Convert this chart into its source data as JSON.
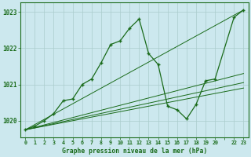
{
  "title": "Graphe pression niveau de la mer (hPa)",
  "bg_color": "#cce8ee",
  "grid_color": "#aacccc",
  "line_color": "#1a6b1a",
  "xlim": [
    -0.5,
    23.5
  ],
  "ylim": [
    1019.55,
    1023.25
  ],
  "yticks": [
    1020,
    1021,
    1022,
    1023
  ],
  "xtick_positions": [
    0,
    1,
    2,
    3,
    4,
    5,
    6,
    7,
    8,
    9,
    10,
    11,
    12,
    13,
    14,
    15,
    16,
    17,
    18,
    19,
    20,
    21,
    22,
    23
  ],
  "xtick_labels": [
    "0",
    "1",
    "2",
    "3",
    "4",
    "5",
    "6",
    "7",
    "8",
    "9",
    "10",
    "11",
    "12",
    "13",
    "14",
    "15",
    "16",
    "17",
    "18",
    "19",
    "20",
    "",
    "22",
    "23"
  ],
  "series": [
    [
      0,
      1019.75
    ],
    [
      1,
      1019.85
    ],
    [
      2,
      1020.0
    ],
    [
      3,
      1020.2
    ],
    [
      4,
      1020.55
    ],
    [
      5,
      1020.6
    ],
    [
      6,
      1021.0
    ],
    [
      7,
      1021.15
    ],
    [
      8,
      1021.6
    ],
    [
      9,
      1022.1
    ],
    [
      10,
      1022.2
    ],
    [
      11,
      1022.55
    ],
    [
      12,
      1022.8
    ],
    [
      13,
      1021.85
    ],
    [
      14,
      1021.55
    ],
    [
      15,
      1020.4
    ],
    [
      16,
      1020.3
    ],
    [
      17,
      1020.05
    ],
    [
      18,
      1020.45
    ],
    [
      19,
      1021.1
    ],
    [
      20,
      1021.15
    ],
    [
      22,
      1022.85
    ],
    [
      23,
      1023.05
    ]
  ],
  "trend_lines": [
    [
      [
        0,
        1019.75
      ],
      [
        23,
        1023.05
      ]
    ],
    [
      [
        0,
        1019.75
      ],
      [
        23,
        1021.3
      ]
    ],
    [
      [
        0,
        1019.75
      ],
      [
        23,
        1021.05
      ]
    ],
    [
      [
        0,
        1019.75
      ],
      [
        23,
        1020.9
      ]
    ]
  ]
}
